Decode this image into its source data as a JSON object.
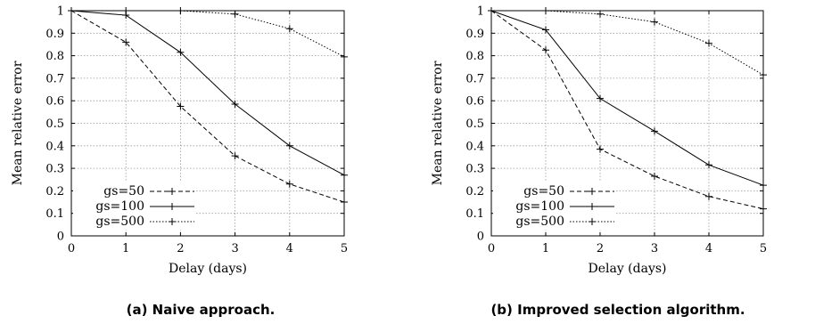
{
  "chart_data": [
    {
      "type": "line",
      "caption": "(a) Naive approach.",
      "xlabel": "Delay (days)",
      "ylabel": "Mean relative error",
      "xlim": [
        0,
        5
      ],
      "ylim": [
        0,
        1
      ],
      "xticks": [
        "0",
        "1",
        "2",
        "3",
        "4",
        "5"
      ],
      "yticks": [
        "0",
        "0.1",
        "0.2",
        "0.3",
        "0.4",
        "0.5",
        "0.6",
        "0.7",
        "0.8",
        "0.9",
        "1"
      ],
      "grid": true,
      "legend_position": "bottom-left",
      "x": [
        0,
        1,
        2,
        3,
        4,
        5
      ],
      "series": [
        {
          "name": "gs=50",
          "style": "dashed",
          "values": [
            1.0,
            0.86,
            0.575,
            0.355,
            0.23,
            0.15
          ]
        },
        {
          "name": "gs=100",
          "style": "solid",
          "values": [
            1.0,
            0.98,
            0.815,
            0.585,
            0.4,
            0.27
          ]
        },
        {
          "name": "gs=500",
          "style": "dotted",
          "values": [
            1.0,
            1.0,
            1.0,
            0.985,
            0.92,
            0.795
          ]
        }
      ]
    },
    {
      "type": "line",
      "caption": "(b) Improved selection algorithm.",
      "xlabel": "Delay (days)",
      "ylabel": "Mean relative error",
      "xlim": [
        0,
        5
      ],
      "ylim": [
        0,
        1
      ],
      "xticks": [
        "0",
        "1",
        "2",
        "3",
        "4",
        "5"
      ],
      "yticks": [
        "0",
        "0.1",
        "0.2",
        "0.3",
        "0.4",
        "0.5",
        "0.6",
        "0.7",
        "0.8",
        "0.9",
        "1"
      ],
      "grid": true,
      "legend_position": "bottom-left",
      "x": [
        0,
        1,
        2,
        3,
        4,
        5
      ],
      "series": [
        {
          "name": "gs=50",
          "style": "dashed",
          "values": [
            1.0,
            0.825,
            0.385,
            0.265,
            0.175,
            0.12
          ]
        },
        {
          "name": "gs=100",
          "style": "solid",
          "values": [
            1.0,
            0.915,
            0.61,
            0.465,
            0.315,
            0.225
          ]
        },
        {
          "name": "gs=500",
          "style": "dotted",
          "values": [
            1.0,
            1.0,
            0.985,
            0.95,
            0.855,
            0.715
          ]
        }
      ]
    }
  ]
}
